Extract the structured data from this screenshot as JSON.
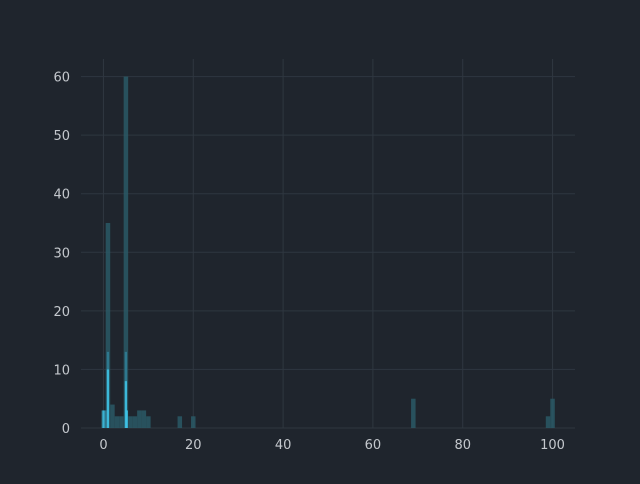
{
  "chart_data": {
    "type": "bar",
    "subtype": "overlaid-histogram",
    "title": "",
    "xlabel": "",
    "ylabel": "",
    "xlim": [
      -5,
      105
    ],
    "ylim": [
      0,
      63
    ],
    "x_ticks": [
      0,
      20,
      40,
      60,
      80,
      100
    ],
    "y_ticks": [
      0,
      10,
      20,
      30,
      40,
      50,
      60
    ],
    "grid": true,
    "legend": "none",
    "colors": {
      "background": "#1f252d",
      "grid": "#2f3740",
      "tick_text": "#c4c8cd",
      "bar_dark": "#2a5966",
      "bar_mid": "#2f7f96",
      "bar_light": "#3ec3e6"
    },
    "series": [
      {
        "bin_width": 1,
        "bins": [
          {
            "x": 0,
            "count": 3
          },
          {
            "x": 1,
            "count": 35
          },
          {
            "x": 2,
            "count": 4
          },
          {
            "x": 3,
            "count": 2
          },
          {
            "x": 4,
            "count": 2
          },
          {
            "x": 5,
            "count": 60
          },
          {
            "x": 6,
            "count": 2
          },
          {
            "x": 7,
            "count": 2
          },
          {
            "x": 8,
            "count": 3
          },
          {
            "x": 9,
            "count": 3
          },
          {
            "x": 10,
            "count": 2
          },
          {
            "x": 17,
            "count": 2
          },
          {
            "x": 20,
            "count": 2
          },
          {
            "x": 69,
            "count": 5
          },
          {
            "x": 99,
            "count": 2
          },
          {
            "x": 100,
            "count": 5
          }
        ],
        "color": "#2a5966"
      },
      {
        "bin_width": 0.5,
        "bins": [
          {
            "x": 0.5,
            "count": 3
          },
          {
            "x": 1,
            "count": 13
          },
          {
            "x": 5,
            "count": 13
          }
        ],
        "color": "#2f7f96"
      },
      {
        "bin_width": 0.5,
        "bins": [
          {
            "x": 0,
            "count": 3
          },
          {
            "x": 1,
            "count": 10
          },
          {
            "x": 5,
            "count": 8
          },
          {
            "x": 5.2,
            "count": 3
          }
        ],
        "color": "#3ec3e6"
      }
    ]
  }
}
